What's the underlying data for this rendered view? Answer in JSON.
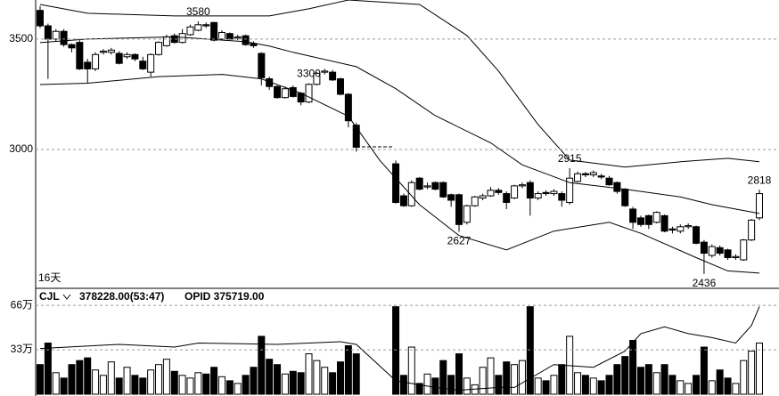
{
  "chart_data": {
    "type": "candlestick",
    "period_label": "16天",
    "indicator": "CJL",
    "indicator_value": "378228.00(53:47)",
    "opid_label": "OPID 375719.00",
    "open": [
      3630,
      3560,
      3500,
      3535,
      3475,
      3485,
      3395,
      3365,
      3440,
      3440,
      3435,
      3420,
      3430,
      3400,
      3350,
      3430,
      3470,
      3515,
      3485,
      3520,
      3540,
      3565,
      3575,
      3500,
      3525,
      3505,
      3515,
      3480,
      3435,
      3320,
      3285,
      3235,
      3280,
      3255,
      3215,
      3295,
      3350,
      3350,
      3320,
      3250,
      3110,
      null,
      null,
      null,
      null,
      2935,
      2790,
      2745,
      2870,
      2830,
      2850,
      2850,
      2795,
      2795,
      2670,
      2745,
      2780,
      2790,
      2815,
      2800,
      2780,
      2835,
      2850,
      2780,
      2805,
      2800,
      2800,
      2760,
      2855,
      2890,
      2885,
      2880,
      2870,
      2850,
      2820,
      2730,
      2690,
      2700,
      2670,
      2700,
      2640,
      2630,
      2650,
      2650,
      2580,
      2520,
      2555,
      2545,
      2510,
      2500,
      2590,
      2690
    ],
    "close": [
      3560,
      3500,
      3535,
      3475,
      3460,
      3365,
      3365,
      3430,
      3445,
      3450,
      3390,
      3430,
      3410,
      3365,
      3430,
      3485,
      3510,
      3485,
      3525,
      3555,
      3565,
      3560,
      3495,
      3530,
      3500,
      3510,
      3475,
      3470,
      3325,
      3285,
      3235,
      3275,
      3240,
      3215,
      3295,
      3345,
      3355,
      3315,
      3250,
      3130,
      3010,
      null,
      null,
      null,
      null,
      2760,
      2745,
      2850,
      2820,
      2835,
      2820,
      2785,
      2770,
      2660,
      2745,
      2785,
      2790,
      2815,
      2805,
      2760,
      2835,
      2840,
      2780,
      2800,
      2800,
      2810,
      2770,
      2870,
      2890,
      2885,
      2895,
      2875,
      2840,
      2810,
      2745,
      2670,
      2660,
      2660,
      2715,
      2630,
      2635,
      2650,
      2655,
      2575,
      2530,
      2560,
      2530,
      2510,
      2515,
      2590,
      2680,
      2800
    ],
    "high": [
      3650,
      3570,
      3545,
      3545,
      3480,
      3495,
      3410,
      3440,
      3455,
      3460,
      3445,
      3440,
      3435,
      3420,
      3435,
      3490,
      3520,
      3525,
      3545,
      3565,
      3580,
      3575,
      3578,
      3540,
      3530,
      3520,
      3520,
      3490,
      3440,
      3330,
      3290,
      3285,
      3290,
      3260,
      3300,
      3350,
      3365,
      3360,
      3325,
      3255,
      3120,
      null,
      null,
      null,
      null,
      2950,
      2800,
      2860,
      2875,
      2850,
      2855,
      2855,
      2800,
      2800,
      2750,
      2790,
      2800,
      2830,
      2825,
      2810,
      2840,
      2850,
      2860,
      2810,
      2815,
      2820,
      2810,
      2915,
      2900,
      2898,
      2905,
      2890,
      2880,
      2855,
      2825,
      2740,
      2700,
      2705,
      2720,
      2705,
      2650,
      2660,
      2665,
      2655,
      2590,
      2570,
      2565,
      2550,
      2525,
      2595,
      2685,
      2818
    ],
    "low": [
      3550,
      3320,
      3490,
      3465,
      3440,
      3360,
      3300,
      3355,
      3430,
      3430,
      3385,
      3410,
      3400,
      3360,
      3330,
      3425,
      3465,
      3480,
      3480,
      3515,
      3535,
      3550,
      3490,
      3495,
      3495,
      3495,
      3470,
      3460,
      3290,
      3270,
      3230,
      3230,
      3235,
      3200,
      3210,
      3290,
      3340,
      3310,
      3245,
      3100,
      2990,
      null,
      null,
      null,
      null,
      2755,
      2740,
      2740,
      2815,
      2820,
      2815,
      2780,
      2740,
      2627,
      2660,
      2740,
      2770,
      2785,
      2795,
      2730,
      2775,
      2825,
      2700,
      2770,
      2790,
      2790,
      2740,
      2750,
      2850,
      2875,
      2875,
      2865,
      2835,
      2800,
      2740,
      2640,
      2650,
      2640,
      2665,
      2625,
      2620,
      2620,
      2640,
      2570,
      2436,
      2510,
      2520,
      2500,
      2500,
      2495,
      2585,
      2680
    ],
    "ylim": [
      2375,
      3677
    ],
    "yticks": [
      3000,
      3500
    ],
    "grid": true,
    "up_color": "#ffffff",
    "down_color": "#000000",
    "extremes": [
      3580,
      3300,
      2915,
      2627,
      2436,
      2818
    ],
    "overlays": [
      {
        "color": "#000000",
        "x": [
          0,
          6,
          17,
          29,
          34,
          39,
          48,
          54,
          58,
          63,
          67,
          74,
          81,
          87,
          91
        ],
        "values": [
          3657,
          3617,
          3605,
          3605,
          3637,
          3677,
          3657,
          3516,
          3355,
          3113,
          2952,
          2920,
          2944,
          2960,
          2944
        ]
      },
      {
        "color": "#000000",
        "x": [
          0,
          6,
          17,
          26,
          29,
          32,
          40,
          45,
          50,
          57,
          61,
          67,
          74,
          81,
          85,
          91
        ],
        "values": [
          3484,
          3500,
          3510,
          3488,
          3468,
          3440,
          3375,
          3275,
          3153,
          3030,
          2930,
          2850,
          2820,
          2785,
          2750,
          2710
        ]
      },
      {
        "color": "#000000",
        "x": [
          0,
          6,
          15,
          23,
          28,
          33,
          39,
          43,
          48,
          53,
          59,
          65,
          72,
          76,
          83,
          87,
          91
        ],
        "values": [
          3294,
          3300,
          3330,
          3340,
          3320,
          3255,
          3150,
          2950,
          2750,
          2610,
          2545,
          2630,
          2670,
          2620,
          2510,
          2450,
          2440
        ]
      }
    ],
    "volume": {
      "values": [
        22,
        38,
        16,
        12,
        22,
        25,
        27,
        18,
        14,
        24,
        12,
        20,
        14,
        12,
        18,
        22,
        26,
        17,
        14,
        12,
        16,
        15,
        20,
        13,
        10,
        8,
        14,
        20,
        43,
        26,
        22,
        15,
        17,
        16,
        30,
        25,
        20,
        16,
        24,
        36,
        30,
        null,
        null,
        null,
        null,
        65,
        14,
        35,
        8,
        15,
        12,
        25,
        14,
        30,
        12,
        7,
        20,
        27,
        14,
        24,
        22,
        25,
        65,
        12,
        10,
        14,
        22,
        43,
        16,
        14,
        12,
        10,
        14,
        22,
        28,
        40,
        20,
        22,
        16,
        22,
        14,
        10,
        8,
        14,
        35,
        10,
        18,
        12,
        8,
        25,
        32,
        38
      ],
      "ylim": [
        0,
        76
      ],
      "yticks": [
        {
          "value": 66,
          "label": "66万"
        },
        {
          "value": 33,
          "label": "33万"
        }
      ],
      "ma": {
        "color": "#000000",
        "x": [
          0,
          10,
          17,
          20,
          30,
          38,
          40,
          45,
          50,
          53,
          58,
          60,
          65,
          70,
          74,
          76,
          79,
          82,
          85,
          88,
          90,
          91
        ],
        "values": [
          34,
          37,
          35,
          38,
          37,
          39,
          37,
          10,
          5,
          3,
          5,
          5,
          22,
          20,
          32,
          45,
          50,
          45,
          42,
          38,
          51,
          65
        ]
      }
    }
  }
}
